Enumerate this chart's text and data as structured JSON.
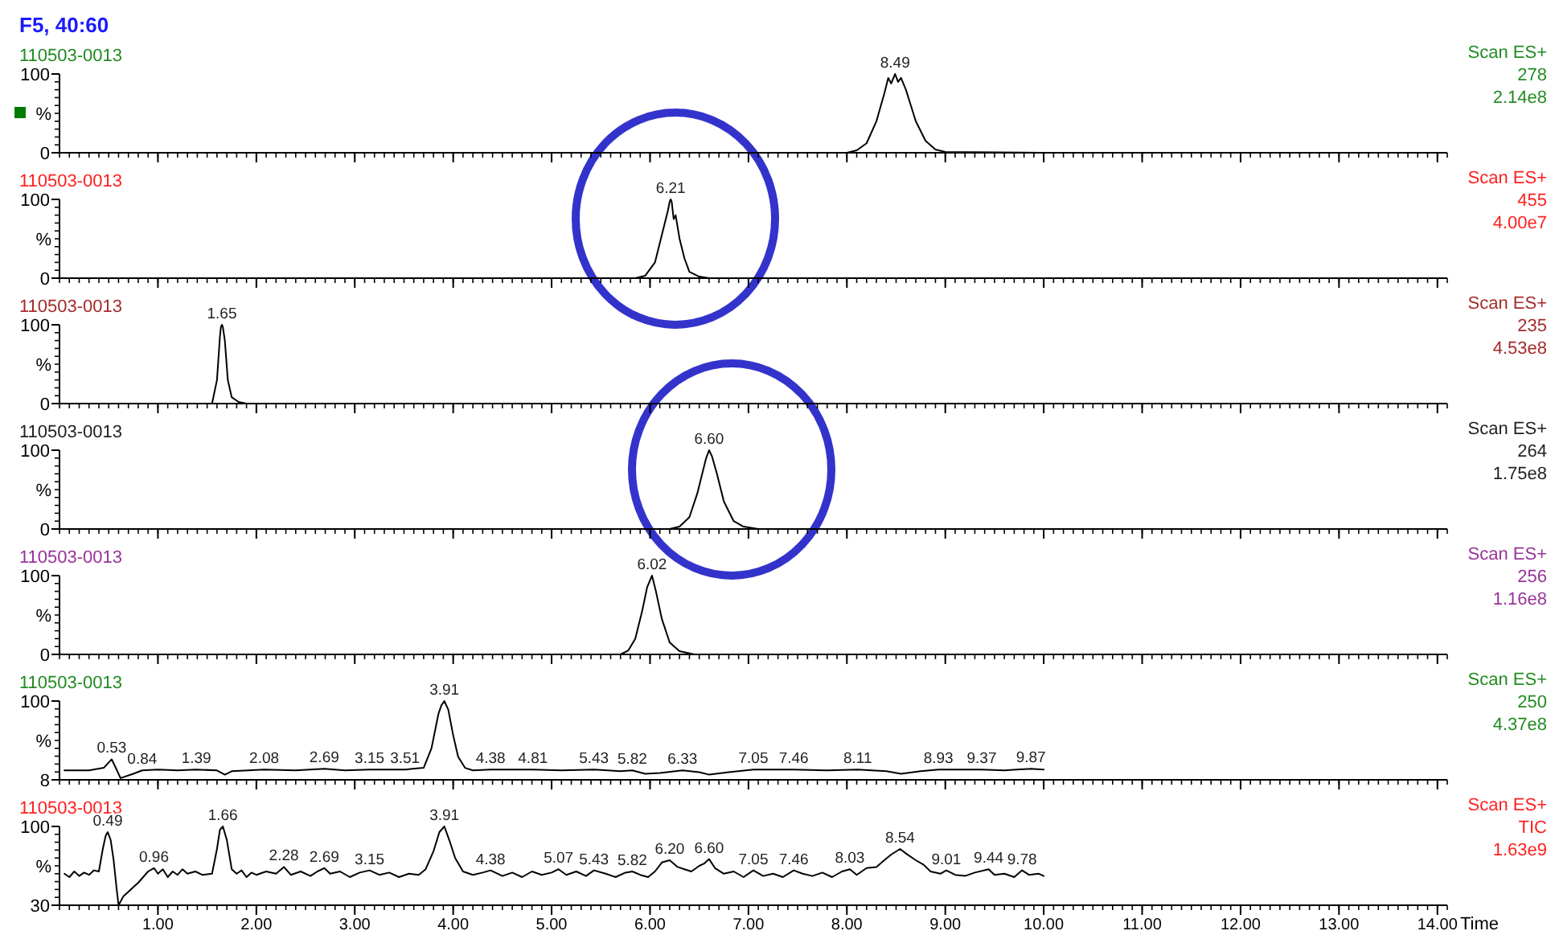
{
  "chart_data": [
    {
      "type": "line",
      "title": "F5, 40:60",
      "subtitle": "110503-0013",
      "ylabel": "%",
      "xlim": [
        0,
        14.1
      ],
      "ylim": [
        0,
        100
      ],
      "yticks": [
        0,
        100
      ],
      "xticks": [
        {
          "value": 1,
          "label": null
        },
        {
          "value": 2,
          "label": null
        },
        {
          "value": 3,
          "label": null
        },
        {
          "value": 4,
          "label": null
        },
        {
          "value": 5,
          "label": null
        },
        {
          "value": 6,
          "label": null
        },
        {
          "value": 7,
          "label": null
        },
        {
          "value": 8,
          "label": null
        },
        {
          "value": 9,
          "label": null
        },
        {
          "value": 10,
          "label": null
        },
        {
          "value": 11,
          "label": null
        },
        {
          "value": 12,
          "label": null
        },
        {
          "value": 13,
          "label": null
        },
        {
          "value": 14,
          "label": null
        }
      ],
      "tick_labels": "y",
      "series": [
        {
          "color": "#000000",
          "x": [
            0.05,
            8.0,
            8.1,
            8.2,
            8.3,
            8.38,
            8.42,
            8.45,
            8.49,
            8.52,
            8.55,
            8.6,
            8.65,
            8.7,
            8.8,
            8.9,
            9.0,
            10.0
          ],
          "values": [
            0,
            0,
            3,
            12,
            40,
            75,
            95,
            88,
            100,
            90,
            95,
            80,
            60,
            40,
            15,
            4,
            1,
            0
          ]
        }
      ],
      "annotations": [
        "Scan ES+",
        "278",
        "2.14e8",
        {
          "text": "8.49",
          "x": 8.49,
          "y": 100
        }
      ]
    },
    {
      "type": "line",
      "subtitle": "110503-0013",
      "ylabel": "%",
      "xlim": [
        0,
        14.1
      ],
      "ylim": [
        0,
        100
      ],
      "yticks": [
        0,
        100
      ],
      "xticks": [
        {
          "value": 1,
          "label": null
        },
        {
          "value": 2,
          "label": null
        },
        {
          "value": 3,
          "label": null
        },
        {
          "value": 4,
          "label": null
        },
        {
          "value": 5,
          "label": null
        },
        {
          "value": 6,
          "label": null
        },
        {
          "value": 7,
          "label": null
        },
        {
          "value": 8,
          "label": null
        },
        {
          "value": 9,
          "label": null
        },
        {
          "value": 10,
          "label": null
        },
        {
          "value": 11,
          "label": null
        },
        {
          "value": 12,
          "label": null
        },
        {
          "value": 13,
          "label": null
        },
        {
          "value": 14,
          "label": null
        }
      ],
      "tick_labels": "y",
      "series": [
        {
          "color": "#000000",
          "x": [
            0.05,
            5.85,
            5.95,
            6.05,
            6.1,
            6.15,
            6.18,
            6.2,
            6.21,
            6.22,
            6.24,
            6.26,
            6.3,
            6.35,
            6.4,
            6.5,
            6.6,
            10.0
          ],
          "values": [
            0,
            0,
            3,
            20,
            45,
            70,
            85,
            97,
            100,
            97,
            75,
            80,
            50,
            25,
            8,
            2,
            0,
            0
          ]
        }
      ],
      "annotations": [
        "Scan ES+",
        "455",
        "4.00e7",
        {
          "text": "6.21",
          "x": 6.21,
          "y": 100
        }
      ]
    },
    {
      "type": "line",
      "subtitle": "110503-0013",
      "ylabel": "%",
      "xlim": [
        0,
        14.1
      ],
      "ylim": [
        0,
        100
      ],
      "yticks": [
        0,
        100
      ],
      "xticks": [
        {
          "value": 1,
          "label": null
        },
        {
          "value": 2,
          "label": null
        },
        {
          "value": 3,
          "label": null
        },
        {
          "value": 4,
          "label": null
        },
        {
          "value": 5,
          "label": null
        },
        {
          "value": 6,
          "label": null
        },
        {
          "value": 7,
          "label": null
        },
        {
          "value": 8,
          "label": null
        },
        {
          "value": 9,
          "label": null
        },
        {
          "value": 10,
          "label": null
        },
        {
          "value": 11,
          "label": null
        },
        {
          "value": 12,
          "label": null
        },
        {
          "value": 13,
          "label": null
        },
        {
          "value": 14,
          "label": null
        }
      ],
      "tick_labels": "y",
      "series": [
        {
          "color": "#000000",
          "x": [
            0.05,
            1.55,
            1.6,
            1.63,
            1.64,
            1.65,
            1.66,
            1.68,
            1.71,
            1.75,
            1.82,
            1.9,
            10.0
          ],
          "values": [
            0,
            0,
            30,
            85,
            97,
            100,
            97,
            80,
            30,
            8,
            2,
            0,
            0
          ]
        }
      ],
      "annotations": [
        "Scan ES+",
        "235",
        "4.53e8",
        {
          "text": "1.65",
          "x": 1.65,
          "y": 100
        }
      ]
    },
    {
      "type": "line",
      "subtitle": "110503-0013",
      "ylabel": "%",
      "xlim": [
        0,
        14.1
      ],
      "ylim": [
        0,
        100
      ],
      "yticks": [
        0,
        100
      ],
      "xticks": [
        {
          "value": 1,
          "label": null
        },
        {
          "value": 2,
          "label": null
        },
        {
          "value": 3,
          "label": null
        },
        {
          "value": 4,
          "label": null
        },
        {
          "value": 5,
          "label": null
        },
        {
          "value": 6,
          "label": null
        },
        {
          "value": 7,
          "label": null
        },
        {
          "value": 8,
          "label": null
        },
        {
          "value": 9,
          "label": null
        },
        {
          "value": 10,
          "label": null
        },
        {
          "value": 11,
          "label": null
        },
        {
          "value": 12,
          "label": null
        },
        {
          "value": 13,
          "label": null
        },
        {
          "value": 14,
          "label": null
        }
      ],
      "tick_labels": "y",
      "series": [
        {
          "color": "#000000",
          "x": [
            0.05,
            6.2,
            6.3,
            6.4,
            6.48,
            6.54,
            6.57,
            6.6,
            6.63,
            6.68,
            6.75,
            6.85,
            6.95,
            7.1,
            10.0
          ],
          "values": [
            0,
            0,
            3,
            15,
            45,
            75,
            90,
            100,
            92,
            70,
            35,
            10,
            3,
            0,
            0
          ]
        }
      ],
      "annotations": [
        "Scan ES+",
        "264",
        "1.75e8",
        {
          "text": "6.60",
          "x": 6.6,
          "y": 100
        }
      ]
    },
    {
      "type": "line",
      "subtitle": "110503-0013",
      "ylabel": "%",
      "xlim": [
        0,
        14.1
      ],
      "ylim": [
        0,
        100
      ],
      "yticks": [
        0,
        100
      ],
      "xticks": [
        {
          "value": 1,
          "label": null
        },
        {
          "value": 2,
          "label": null
        },
        {
          "value": 3,
          "label": null
        },
        {
          "value": 4,
          "label": null
        },
        {
          "value": 5,
          "label": null
        },
        {
          "value": 6,
          "label": null
        },
        {
          "value": 7,
          "label": null
        },
        {
          "value": 8,
          "label": null
        },
        {
          "value": 9,
          "label": null
        },
        {
          "value": 10,
          "label": null
        },
        {
          "value": 11,
          "label": null
        },
        {
          "value": 12,
          "label": null
        },
        {
          "value": 13,
          "label": null
        },
        {
          "value": 14,
          "label": null
        }
      ],
      "tick_labels": "y",
      "series": [
        {
          "color": "#000000",
          "x": [
            0.05,
            5.7,
            5.78,
            5.85,
            5.92,
            5.97,
            6.02,
            6.06,
            6.12,
            6.2,
            6.3,
            6.45,
            10.0
          ],
          "values": [
            0,
            0,
            5,
            20,
            55,
            85,
            100,
            80,
            45,
            15,
            4,
            0,
            0
          ]
        }
      ],
      "annotations": [
        "Scan ES+",
        "256",
        "1.16e8",
        {
          "text": "6.02",
          "x": 6.02,
          "y": 100
        }
      ]
    },
    {
      "type": "line",
      "subtitle": "110503-0013",
      "ylabel": "%",
      "xlim": [
        0,
        14.1
      ],
      "ylim": [
        8,
        100
      ],
      "yticks": [
        8,
        100
      ],
      "xticks": [
        {
          "value": 1,
          "label": null
        },
        {
          "value": 2,
          "label": null
        },
        {
          "value": 3,
          "label": null
        },
        {
          "value": 4,
          "label": null
        },
        {
          "value": 5,
          "label": null
        },
        {
          "value": 6,
          "label": null
        },
        {
          "value": 7,
          "label": null
        },
        {
          "value": 8,
          "label": null
        },
        {
          "value": 9,
          "label": null
        },
        {
          "value": 10,
          "label": null
        },
        {
          "value": 11,
          "label": null
        },
        {
          "value": 12,
          "label": null
        },
        {
          "value": 13,
          "label": null
        },
        {
          "value": 14,
          "label": null
        }
      ],
      "tick_labels": "y",
      "series": [
        {
          "color": "#000000",
          "x": [
            0.05,
            0.3,
            0.45,
            0.53,
            0.58,
            0.62,
            0.75,
            0.84,
            1.0,
            1.2,
            1.39,
            1.6,
            1.68,
            1.75,
            2.08,
            2.4,
            2.69,
            2.9,
            3.15,
            3.51,
            3.7,
            3.78,
            3.85,
            3.88,
            3.91,
            3.95,
            4.0,
            4.05,
            4.12,
            4.2,
            4.38,
            4.81,
            5.1,
            5.43,
            5.7,
            5.82,
            5.95,
            6.1,
            6.33,
            6.5,
            6.6,
            6.8,
            7.05,
            7.46,
            7.8,
            8.11,
            8.4,
            8.55,
            8.75,
            8.93,
            9.37,
            9.6,
            9.87,
            10.0
          ],
          "values": [
            19,
            19,
            22,
            32,
            20,
            10,
            15,
            19,
            20,
            19,
            20,
            19,
            14,
            18,
            20,
            19,
            21,
            19,
            20,
            20,
            22,
            45,
            85,
            95,
            100,
            90,
            60,
            35,
            22,
            19,
            20,
            20,
            19,
            20,
            18,
            19,
            15,
            16,
            19,
            17,
            14,
            17,
            20,
            20,
            19,
            20,
            18,
            15,
            18,
            20,
            20,
            19,
            21,
            20
          ]
        }
      ],
      "annotations": [
        "Scan ES+",
        "250",
        "4.37e8",
        {
          "text": "0.53",
          "x": 0.53,
          "y": 32
        },
        {
          "text": "0.84",
          "x": 0.84,
          "y": 19
        },
        {
          "text": "1.39",
          "x": 1.39,
          "y": 20
        },
        {
          "text": "2.08",
          "x": 2.08,
          "y": 20
        },
        {
          "text": "2.69",
          "x": 2.69,
          "y": 21
        },
        {
          "text": "3.15",
          "x": 3.15,
          "y": 20
        },
        {
          "text": "3.51",
          "x": 3.51,
          "y": 20
        },
        {
          "text": "3.91",
          "x": 3.91,
          "y": 100
        },
        {
          "text": "4.38",
          "x": 4.38,
          "y": 20
        },
        {
          "text": "4.81",
          "x": 4.81,
          "y": 20
        },
        {
          "text": "5.43",
          "x": 5.43,
          "y": 20
        },
        {
          "text": "5.82",
          "x": 5.82,
          "y": 19
        },
        {
          "text": "6.33",
          "x": 6.33,
          "y": 19
        },
        {
          "text": "7.05",
          "x": 7.05,
          "y": 20
        },
        {
          "text": "7.46",
          "x": 7.46,
          "y": 20
        },
        {
          "text": "8.11",
          "x": 8.11,
          "y": 20
        },
        {
          "text": "8.93",
          "x": 8.93,
          "y": 20
        },
        {
          "text": "9.37",
          "x": 9.37,
          "y": 20
        },
        {
          "text": "9.87",
          "x": 9.87,
          "y": 21
        }
      ]
    },
    {
      "type": "line",
      "subtitle": "110503-0013",
      "xlabel": "Time",
      "ylabel": "%",
      "xlim": [
        0,
        14.1
      ],
      "ylim": [
        30,
        100
      ],
      "yticks": [
        30,
        100
      ],
      "xticks": [
        {
          "value": 1,
          "label": "1.00"
        },
        {
          "value": 2,
          "label": "2.00"
        },
        {
          "value": 3,
          "label": "3.00"
        },
        {
          "value": 4,
          "label": "4.00"
        },
        {
          "value": 5,
          "label": "5.00"
        },
        {
          "value": 6,
          "label": "6.00"
        },
        {
          "value": 7,
          "label": "7.00"
        },
        {
          "value": 8,
          "label": "8.00"
        },
        {
          "value": 9,
          "label": "9.00"
        },
        {
          "value": 10,
          "label": "10.00"
        },
        {
          "value": 11,
          "label": "11.00"
        },
        {
          "value": 12,
          "label": "12.00"
        },
        {
          "value": 13,
          "label": "13.00"
        },
        {
          "value": 14,
          "label": "14.00"
        }
      ],
      "series": [
        {
          "color": "#000000",
          "x": [
            0.05,
            0.1,
            0.15,
            0.2,
            0.25,
            0.3,
            0.35,
            0.4,
            0.44,
            0.47,
            0.49,
            0.52,
            0.55,
            0.58,
            0.6,
            0.65,
            0.7,
            0.75,
            0.8,
            0.85,
            0.9,
            0.96,
            1.0,
            1.05,
            1.1,
            1.15,
            1.2,
            1.25,
            1.3,
            1.38,
            1.45,
            1.55,
            1.6,
            1.63,
            1.66,
            1.7,
            1.75,
            1.8,
            1.85,
            1.9,
            1.95,
            2.0,
            2.1,
            2.2,
            2.28,
            2.35,
            2.45,
            2.55,
            2.62,
            2.69,
            2.75,
            2.85,
            2.95,
            3.05,
            3.15,
            3.25,
            3.35,
            3.45,
            3.55,
            3.65,
            3.72,
            3.8,
            3.86,
            3.91,
            3.96,
            4.02,
            4.1,
            4.2,
            4.3,
            4.38,
            4.5,
            4.6,
            4.7,
            4.8,
            4.9,
            5.0,
            5.07,
            5.15,
            5.25,
            5.35,
            5.43,
            5.55,
            5.65,
            5.75,
            5.82,
            5.9,
            5.98,
            6.05,
            6.12,
            6.2,
            6.28,
            6.35,
            6.42,
            6.5,
            6.55,
            6.6,
            6.66,
            6.75,
            6.85,
            6.95,
            7.05,
            7.15,
            7.25,
            7.35,
            7.46,
            7.55,
            7.65,
            7.75,
            7.85,
            7.95,
            8.03,
            8.1,
            8.2,
            8.3,
            8.38,
            8.45,
            8.54,
            8.6,
            8.7,
            8.78,
            8.85,
            8.95,
            9.01,
            9.1,
            9.2,
            9.3,
            9.44,
            9.5,
            9.6,
            9.7,
            9.78,
            9.85,
            9.95,
            10.0
          ],
          "values": [
            58,
            55,
            60,
            56,
            59,
            57,
            61,
            60,
            80,
            92,
            95,
            88,
            70,
            45,
            30,
            38,
            42,
            46,
            50,
            55,
            60,
            63,
            58,
            62,
            55,
            60,
            57,
            62,
            58,
            60,
            57,
            58,
            80,
            97,
            100,
            88,
            62,
            58,
            61,
            55,
            59,
            57,
            60,
            58,
            64,
            57,
            60,
            56,
            60,
            63,
            58,
            60,
            55,
            59,
            61,
            57,
            59,
            55,
            58,
            57,
            62,
            78,
            95,
            100,
            88,
            72,
            60,
            57,
            59,
            61,
            56,
            59,
            55,
            60,
            57,
            59,
            62,
            57,
            60,
            56,
            61,
            58,
            55,
            59,
            60,
            57,
            55,
            60,
            68,
            70,
            64,
            62,
            60,
            65,
            67,
            71,
            63,
            58,
            60,
            55,
            61,
            56,
            58,
            55,
            61,
            58,
            56,
            59,
            55,
            60,
            62,
            57,
            63,
            64,
            70,
            75,
            80,
            76,
            70,
            66,
            60,
            58,
            61,
            57,
            56,
            59,
            62,
            57,
            58,
            55,
            61,
            57,
            58,
            56
          ]
        }
      ],
      "annotations": [
        "Scan ES+",
        "TIC",
        "1.63e9",
        {
          "text": "0.49",
          "x": 0.49,
          "y": 95
        },
        {
          "text": "0.96",
          "x": 0.96,
          "y": 63
        },
        {
          "text": "1.66",
          "x": 1.66,
          "y": 100
        },
        {
          "text": "2.28",
          "x": 2.28,
          "y": 64
        },
        {
          "text": "2.69",
          "x": 2.69,
          "y": 63
        },
        {
          "text": "3.15",
          "x": 3.15,
          "y": 61
        },
        {
          "text": "3.91",
          "x": 3.91,
          "y": 100
        },
        {
          "text": "4.38",
          "x": 4.38,
          "y": 61
        },
        {
          "text": "5.07",
          "x": 5.07,
          "y": 62
        },
        {
          "text": "5.43",
          "x": 5.43,
          "y": 61
        },
        {
          "text": "5.82",
          "x": 5.82,
          "y": 60
        },
        {
          "text": "6.20",
          "x": 6.2,
          "y": 70
        },
        {
          "text": "6.60",
          "x": 6.6,
          "y": 71
        },
        {
          "text": "7.05",
          "x": 7.05,
          "y": 61
        },
        {
          "text": "7.46",
          "x": 7.46,
          "y": 61
        },
        {
          "text": "8.03",
          "x": 8.03,
          "y": 62
        },
        {
          "text": "8.54",
          "x": 8.54,
          "y": 80
        },
        {
          "text": "9.01",
          "x": 9.01,
          "y": 61
        },
        {
          "text": "9.44",
          "x": 9.44,
          "y": 62
        },
        {
          "text": "9.78",
          "x": 9.78,
          "y": 61
        }
      ]
    }
  ]
}
